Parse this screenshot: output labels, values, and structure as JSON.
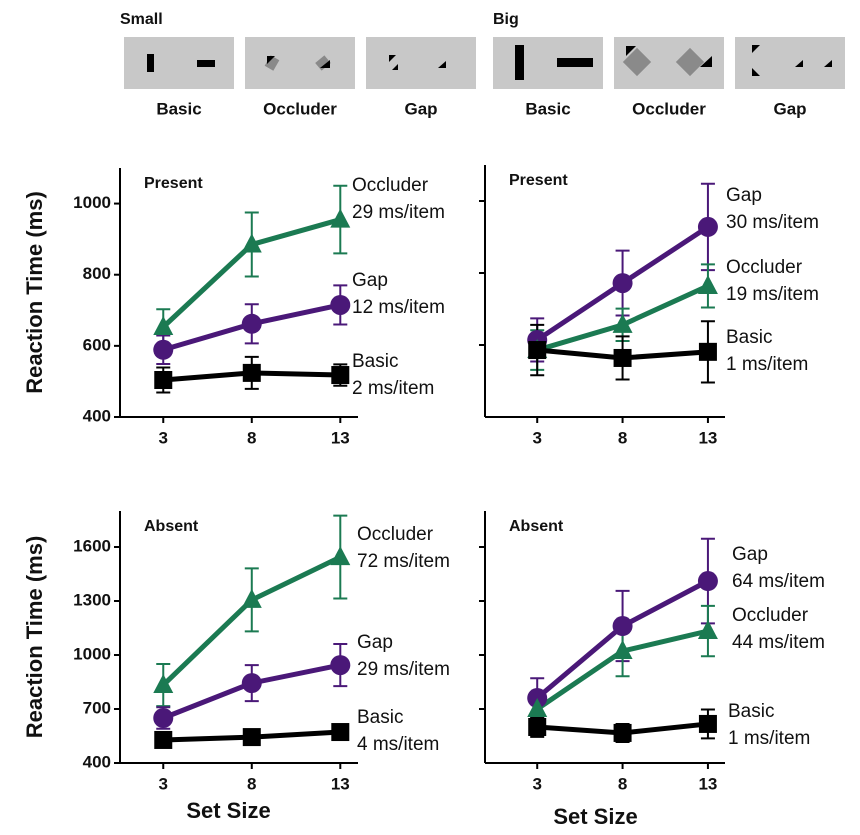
{
  "stimuli": [
    {
      "label": "Small",
      "panels": [
        "Basic",
        "Occluder",
        "Gap"
      ]
    },
    {
      "label": "Big",
      "panels": [
        "Basic",
        "Occluder",
        "Gap"
      ]
    }
  ],
  "chart_data": [
    {
      "type": "line",
      "title": "Present",
      "ylabel": "Reaction Time  (ms)",
      "x": [
        3,
        8,
        13
      ],
      "xlim": [
        0.5,
        14
      ],
      "xticks": [
        3,
        8,
        13
      ],
      "ylim": [
        400,
        1100
      ],
      "yticks": [
        400,
        600,
        800,
        1000
      ],
      "show_ytick_labels": true,
      "series": [
        {
          "name": "Occluder",
          "slope_label": "29 ms/item",
          "color": "#1b7a52",
          "marker": "triangle",
          "values": [
            653,
            885,
            955
          ],
          "errors": [
            50,
            90,
            95
          ]
        },
        {
          "name": "Gap",
          "slope_label": "12 ms/item",
          "color": "#4a1878",
          "marker": "circle",
          "values": [
            589,
            662,
            715
          ],
          "errors": [
            40,
            55,
            55
          ]
        },
        {
          "name": "Basic",
          "slope_label": "2 ms/item",
          "color": "#000000",
          "marker": "square",
          "values": [
            504,
            524,
            518
          ],
          "errors": [
            35,
            45,
            30
          ]
        }
      ]
    },
    {
      "type": "line",
      "title": "Present",
      "x": [
        3,
        8,
        13
      ],
      "xlim": [
        0,
        14
      ],
      "xticks": [
        3,
        8,
        13
      ],
      "ylim": [
        400,
        1100
      ],
      "yticks": [
        600,
        800,
        1000
      ],
      "show_ytick_labels": false,
      "series": [
        {
          "name": "Gap",
          "slope_label": "30 ms/item",
          "color": "#4a1878",
          "marker": "circle",
          "values": [
            614,
            772,
            928
          ],
          "errors": [
            60,
            90,
            120
          ]
        },
        {
          "name": "Occluder",
          "slope_label": "19 ms/item",
          "color": "#1b7a52",
          "marker": "triangle",
          "values": [
            586,
            656,
            764
          ],
          "errors": [
            55,
            45,
            60
          ]
        },
        {
          "name": "Basic",
          "slope_label": "1 ms/item",
          "color": "#000000",
          "marker": "square",
          "values": [
            586,
            564,
            581
          ],
          "errors": [
            70,
            60,
            85
          ]
        }
      ]
    },
    {
      "type": "line",
      "title": "Absent",
      "ylabel": "Reaction Time  (ms)",
      "xlabel": "Set Size",
      "x": [
        3,
        8,
        13
      ],
      "xlim": [
        0.5,
        14
      ],
      "xticks": [
        3,
        8,
        13
      ],
      "ylim": [
        400,
        1800
      ],
      "yticks": [
        400,
        700,
        1000,
        1300,
        1600
      ],
      "show_ytick_labels": true,
      "series": [
        {
          "name": "Occluder",
          "slope_label": "72 ms/item",
          "color": "#1b7a52",
          "marker": "triangle",
          "values": [
            833,
            1306,
            1544
          ],
          "errors": [
            117,
            175,
            230
          ]
        },
        {
          "name": "Gap",
          "slope_label": "29 ms/item",
          "color": "#4a1878",
          "marker": "circle",
          "values": [
            650,
            844,
            944
          ],
          "errors": [
            60,
            100,
            117
          ]
        },
        {
          "name": "Basic",
          "slope_label": "4 ms/item",
          "color": "#000000",
          "marker": "square",
          "values": [
            528,
            544,
            572
          ],
          "errors": [
            30,
            30,
            25
          ]
        }
      ]
    },
    {
      "type": "line",
      "title": "Absent",
      "xlabel": "Set Size",
      "x": [
        3,
        8,
        13
      ],
      "xlim": [
        0,
        14
      ],
      "xticks": [
        3,
        8,
        13
      ],
      "ylim": [
        400,
        1800
      ],
      "yticks": [
        700,
        1000,
        1300,
        1600
      ],
      "show_ytick_labels": false,
      "series": [
        {
          "name": "Gap",
          "slope_label": "64 ms/item",
          "color": "#4a1878",
          "marker": "circle",
          "values": [
            761,
            1161,
            1411
          ],
          "errors": [
            110,
            195,
            235
          ]
        },
        {
          "name": "Occluder",
          "slope_label": "44 ms/item",
          "color": "#1b7a52",
          "marker": "triangle",
          "values": [
            700,
            1022,
            1133
          ],
          "errors": [
            55,
            140,
            140
          ]
        },
        {
          "name": "Basic",
          "slope_label": "1 ms/item",
          "color": "#000000",
          "marker": "square",
          "values": [
            600,
            567,
            617
          ],
          "errors": [
            55,
            50,
            80
          ]
        }
      ]
    }
  ]
}
